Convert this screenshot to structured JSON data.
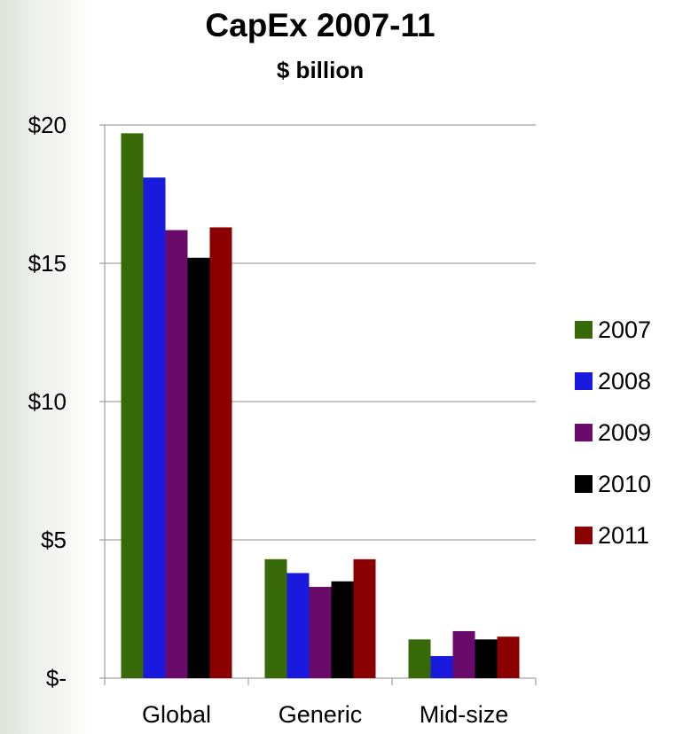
{
  "chart_data": {
    "type": "bar",
    "title": "CapEx 2007-11",
    "subtitle": "$ billion",
    "categories": [
      "Global",
      "Generic",
      "Mid-size"
    ],
    "series": [
      {
        "name": "2007",
        "color": "#376908",
        "values": [
          19.7,
          4.3,
          1.4
        ]
      },
      {
        "name": "2008",
        "color": "#1a1adf",
        "values": [
          18.1,
          3.8,
          0.8
        ]
      },
      {
        "name": "2009",
        "color": "#6a0a6a",
        "values": [
          16.2,
          3.3,
          1.7
        ]
      },
      {
        "name": "2010",
        "color": "#000000",
        "values": [
          15.2,
          3.5,
          1.4
        ]
      },
      {
        "name": "2011",
        "color": "#8b0000",
        "values": [
          16.3,
          4.3,
          1.5
        ]
      }
    ],
    "ylim": [
      0,
      20
    ],
    "yticks": [
      0,
      5,
      10,
      15,
      20
    ],
    "ytick_labels": [
      "$-",
      "$5",
      "$10",
      "$15",
      "$20"
    ],
    "grid": true,
    "legend_position": "right"
  }
}
